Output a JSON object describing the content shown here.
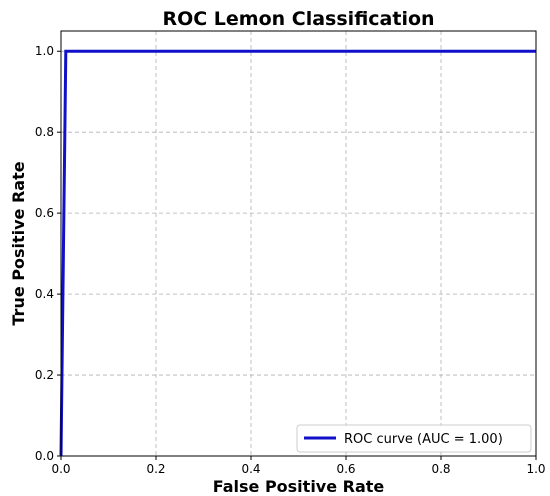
{
  "chart_data": {
    "type": "line",
    "title": "ROC Lemon Classification",
    "xlabel": "False Positive Rate",
    "ylabel": "True Positive Rate",
    "xlim": [
      0.0,
      1.0
    ],
    "ylim": [
      0.0,
      1.05
    ],
    "xticks": [
      "0.0",
      "0.2",
      "0.4",
      "0.6",
      "0.8",
      "1.0"
    ],
    "yticks": [
      "0.0",
      "0.2",
      "0.4",
      "0.6",
      "0.8",
      "1.0"
    ],
    "grid": true,
    "legend_position": "lower-right",
    "series": [
      {
        "name": "ROC curve (AUC = 1.00)",
        "color": "#1010c8",
        "x": [
          0.0,
          0.01,
          1.0
        ],
        "y": [
          0.0,
          1.0,
          1.0
        ]
      }
    ]
  }
}
